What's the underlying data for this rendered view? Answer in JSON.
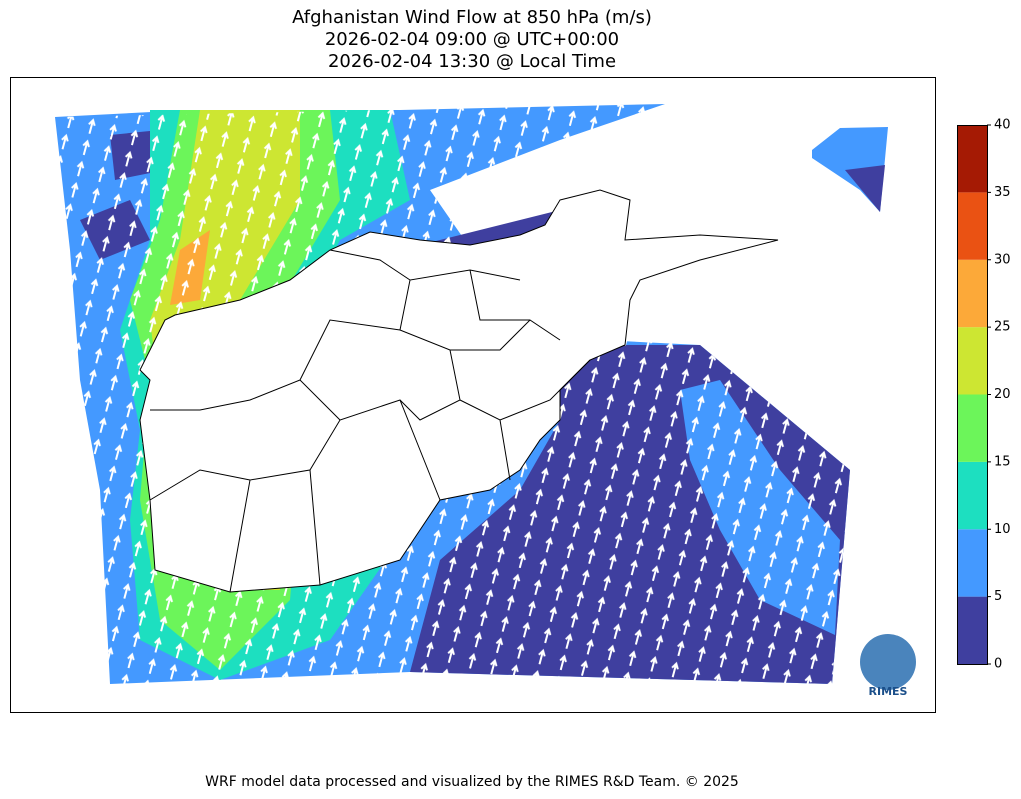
{
  "title": [
    "Afghanistan Wind Flow at 850 hPa (m/s)",
    "2026-02-04 09:00 @ UTC+00:00",
    "2026-02-04 13:30 @ Local Time"
  ],
  "colorbar": {
    "lim": [
      0,
      40
    ],
    "ticks": [
      0,
      5,
      10,
      15,
      20,
      25,
      30,
      35,
      40
    ],
    "colors": [
      "#3f3f9f",
      "#4499ff",
      "#1ddfc0",
      "#6cf55a",
      "#cde632",
      "#fca939",
      "#ea5213",
      "#a51a04"
    ]
  },
  "logo": "RIMES",
  "footer": "WRF model data processed and visualized by the RIMES R&D Team. © 2025"
}
